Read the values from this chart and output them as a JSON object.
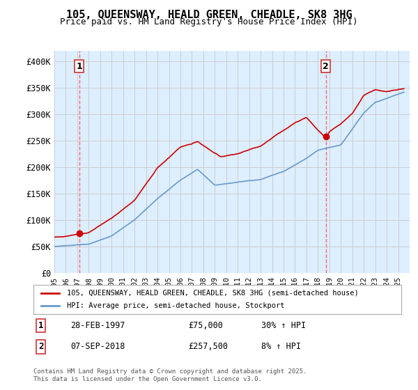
{
  "title": "105, QUEENSWAY, HEALD GREEN, CHEADLE, SK8 3HG",
  "subtitle": "Price paid vs. HM Land Registry's House Price Index (HPI)",
  "ylabel_ticks": [
    "£0",
    "£50K",
    "£100K",
    "£150K",
    "£200K",
    "£250K",
    "£300K",
    "£350K",
    "£400K"
  ],
  "ytick_vals": [
    0,
    50000,
    100000,
    150000,
    200000,
    250000,
    300000,
    350000,
    400000
  ],
  "ylim": [
    0,
    420000
  ],
  "xlim_start": 1995.0,
  "xlim_end": 2026.0,
  "marker1_x": 1997.16,
  "marker1_y": 75000,
  "marker1_label": "1",
  "marker2_x": 2018.68,
  "marker2_y": 257500,
  "marker2_label": "2",
  "legend_line1": "105, QUEENSWAY, HEALD GREEN, CHEADLE, SK8 3HG (semi-detached house)",
  "legend_line2": "HPI: Average price, semi-detached house, Stockport",
  "table_row1": "1    28-FEB-1997    £75,000    30% ↑ HPI",
  "table_row2": "2    07-SEP-2018    £257,500    8% ↑ HPI",
  "footnote": "Contains HM Land Registry data © Crown copyright and database right 2025.\nThis data is licensed under the Open Government Licence v3.0.",
  "line_color_red": "#cc0000",
  "line_color_blue": "#6699cc",
  "background_color": "#ddeeff",
  "plot_bg": "#ffffff",
  "grid_color": "#cccccc",
  "dashed_line_color": "#ff6666"
}
